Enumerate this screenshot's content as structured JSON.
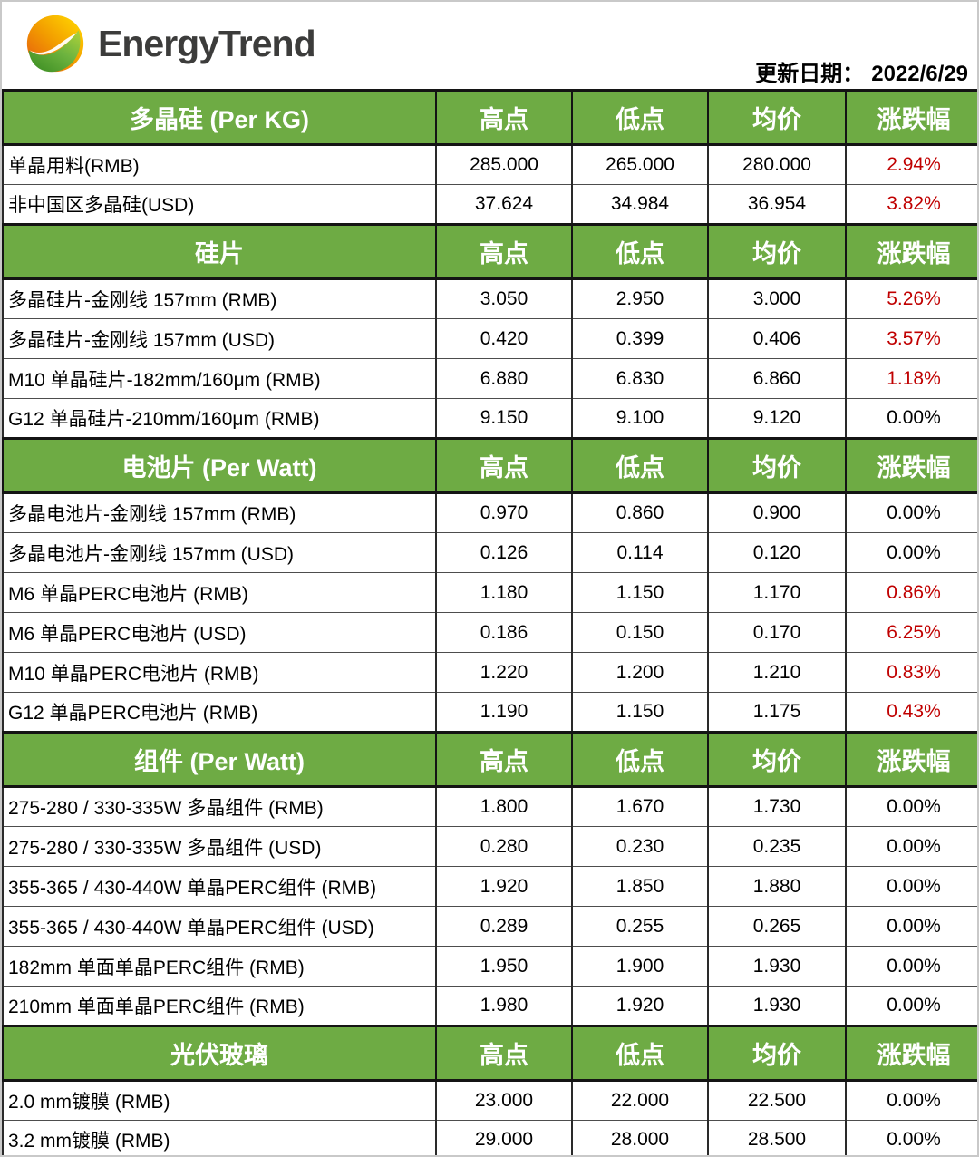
{
  "header": {
    "brand": "EnergyTrend",
    "update_label": "更新日期：",
    "update_date": "2022/6/29"
  },
  "colors": {
    "section_green": "#6EAB44",
    "change_up_red": "#C00000",
    "change_flat_black": "#000000"
  },
  "icons": {
    "logo": "energytrend-leaf-logo"
  },
  "chart_data": {
    "type": "table",
    "columns": [
      "高点",
      "低点",
      "均价",
      "涨跌幅"
    ],
    "sections": [
      {
        "title": "多晶硅 (Per KG)",
        "rows": [
          {
            "label": "单晶用料(RMB)",
            "high": "285.000",
            "low": "265.000",
            "avg": "280.000",
            "change": "2.94%",
            "up": true
          },
          {
            "label": "非中国区多晶硅(USD)",
            "high": "37.624",
            "low": "34.984",
            "avg": "36.954",
            "change": "3.82%",
            "up": true
          }
        ]
      },
      {
        "title": "硅片",
        "rows": [
          {
            "label": "多晶硅片-金刚线 157mm (RMB)",
            "high": "3.050",
            "low": "2.950",
            "avg": "3.000",
            "change": "5.26%",
            "up": true
          },
          {
            "label": "多晶硅片-金刚线 157mm (USD)",
            "high": "0.420",
            "low": "0.399",
            "avg": "0.406",
            "change": "3.57%",
            "up": true
          },
          {
            "label": "M10 单晶硅片-182mm/160μm (RMB)",
            "high": "6.880",
            "low": "6.830",
            "avg": "6.860",
            "change": "1.18%",
            "up": true
          },
          {
            "label": "G12 单晶硅片-210mm/160μm  (RMB)",
            "high": "9.150",
            "low": "9.100",
            "avg": "9.120",
            "change": "0.00%",
            "up": false
          }
        ]
      },
      {
        "title": "电池片 (Per Watt)",
        "rows": [
          {
            "label": "多晶电池片-金刚线 157mm (RMB)",
            "high": "0.970",
            "low": "0.860",
            "avg": "0.900",
            "change": "0.00%",
            "up": false
          },
          {
            "label": "多晶电池片-金刚线 157mm (USD)",
            "high": "0.126",
            "low": "0.114",
            "avg": "0.120",
            "change": "0.00%",
            "up": false
          },
          {
            "label": "M6 单晶PERC电池片 (RMB)",
            "high": "1.180",
            "low": "1.150",
            "avg": "1.170",
            "change": "0.86%",
            "up": true
          },
          {
            "label": "M6 单晶PERC电池片 (USD)",
            "high": "0.186",
            "low": "0.150",
            "avg": "0.170",
            "change": "6.25%",
            "up": true
          },
          {
            "label": "M10 单晶PERC电池片 (RMB)",
            "high": "1.220",
            "low": "1.200",
            "avg": "1.210",
            "change": "0.83%",
            "up": true
          },
          {
            "label": "G12 单晶PERC电池片 (RMB)",
            "high": "1.190",
            "low": "1.150",
            "avg": "1.175",
            "change": "0.43%",
            "up": true
          }
        ]
      },
      {
        "title": "组件 (Per Watt)",
        "rows": [
          {
            "label": "275-280 / 330-335W 多晶组件 (RMB)",
            "high": "1.800",
            "low": "1.670",
            "avg": "1.730",
            "change": "0.00%",
            "up": false
          },
          {
            "label": "275-280 / 330-335W 多晶组件 (USD)",
            "high": "0.280",
            "low": "0.230",
            "avg": "0.235",
            "change": "0.00%",
            "up": false
          },
          {
            "label": "355-365 / 430-440W 单晶PERC组件 (RMB)",
            "high": "1.920",
            "low": "1.850",
            "avg": "1.880",
            "change": "0.00%",
            "up": false
          },
          {
            "label": "355-365 / 430-440W 单晶PERC组件 (USD)",
            "high": "0.289",
            "low": "0.255",
            "avg": "0.265",
            "change": "0.00%",
            "up": false
          },
          {
            "label": "182mm 单面单晶PERC组件 (RMB)",
            "high": "1.950",
            "low": "1.900",
            "avg": "1.930",
            "change": "0.00%",
            "up": false
          },
          {
            "label": "210mm 单面单晶PERC组件 (RMB)",
            "high": "1.980",
            "low": "1.920",
            "avg": "1.930",
            "change": "0.00%",
            "up": false
          }
        ]
      },
      {
        "title": "光伏玻璃",
        "rows": [
          {
            "label": "2.0 mm镀膜 (RMB)",
            "high": "23.000",
            "low": "22.000",
            "avg": "22.500",
            "change": "0.00%",
            "up": false
          },
          {
            "label": "3.2 mm镀膜 (RMB)",
            "high": "29.000",
            "low": "28.000",
            "avg": "28.500",
            "change": "0.00%",
            "up": false
          }
        ]
      }
    ]
  }
}
